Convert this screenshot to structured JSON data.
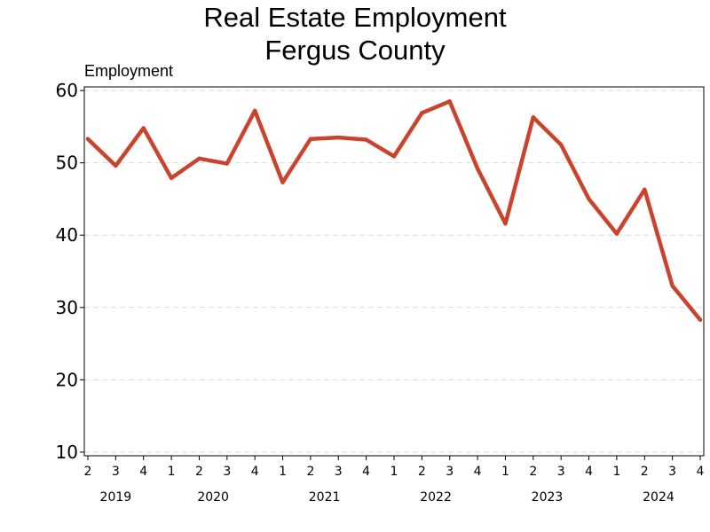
{
  "chart_data": {
    "type": "line",
    "title": [
      "Real Estate Employment",
      "Fergus County"
    ],
    "ylabel": "Employment",
    "xlabel": "",
    "ylim": [
      9.5,
      60.5
    ],
    "yticks": [
      10,
      20,
      30,
      40,
      50,
      60
    ],
    "grid": "horizontal-dashed",
    "legend": "none",
    "x": [
      "2019 Q2",
      "2019 Q3",
      "2019 Q4",
      "2020 Q1",
      "2020 Q2",
      "2020 Q3",
      "2020 Q4",
      "2021 Q1",
      "2021 Q2",
      "2021 Q3",
      "2021 Q4",
      "2022 Q1",
      "2022 Q2",
      "2022 Q3",
      "2022 Q4",
      "2023 Q1",
      "2023 Q2",
      "2023 Q3",
      "2023 Q4",
      "2024 Q1",
      "2024 Q2",
      "2024 Q3",
      "2024 Q4"
    ],
    "quarter_ticks": [
      "2",
      "3",
      "4",
      "1",
      "2",
      "3",
      "4",
      "1",
      "2",
      "3",
      "4",
      "1",
      "2",
      "3",
      "4",
      "1",
      "2",
      "3",
      "4",
      "1",
      "2",
      "3",
      "4"
    ],
    "years": [
      "2019",
      "2020",
      "2021",
      "2022",
      "2023",
      "2024"
    ],
    "series": [
      {
        "values": [
          53.3,
          49.6,
          54.8,
          47.9,
          50.6,
          49.9,
          57.2,
          47.3,
          53.3,
          53.5,
          53.2,
          50.9,
          56.9,
          58.5,
          49.2,
          41.6,
          56.3,
          52.5,
          45.0,
          40.2,
          46.3,
          33.0,
          28.3
        ],
        "color": "#c9432d"
      }
    ],
    "axis_color": "#000000",
    "grid_color": "#d9d9d9"
  }
}
